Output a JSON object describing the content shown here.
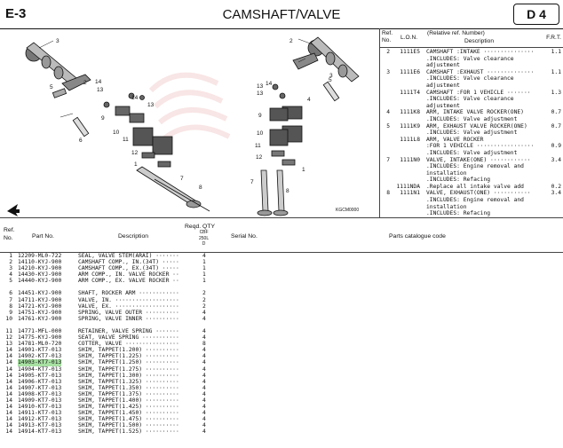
{
  "header": {
    "section": "E-3",
    "title": "CAMSHAFT/VALVE",
    "badge": "D 4"
  },
  "drawing": {
    "code": "KGCM0000",
    "callouts": [
      "3",
      "2",
      "14",
      "5",
      "13",
      "14",
      "13",
      "6",
      "9",
      "10",
      "11",
      "12",
      "1",
      "7",
      "8",
      "3",
      "14",
      "13",
      "13",
      "2",
      "4",
      "9",
      "10",
      "11",
      "12",
      "1",
      "7",
      "8",
      "5"
    ]
  },
  "ref_table": {
    "headers": {
      "ref_no": "Ref.\nNo.",
      "lon": "L.O.N.",
      "relnum": "(Relative ref. Number)",
      "desc": "Description",
      "frt": "F.R.T."
    },
    "lines": [
      {
        "ref": "2",
        "lon": "1111E5",
        "desc": "CAMSHAFT :INTAKE ···············",
        "frt": "1.1"
      },
      {
        "ref": "",
        "lon": "",
        "desc": ".INCLUDES: Valve clearance",
        "frt": ""
      },
      {
        "ref": "",
        "lon": "",
        "desc": "adjustment",
        "frt": ""
      },
      {
        "ref": "3",
        "lon": "1111E6",
        "desc": "CAMSHAFT :EXHAUST ··············",
        "frt": "1.1"
      },
      {
        "ref": "",
        "lon": "",
        "desc": ".INCLUDES: Valve clearance",
        "frt": ""
      },
      {
        "ref": "",
        "lon": "",
        "desc": "adjustment",
        "frt": ""
      },
      {
        "ref": "",
        "lon": "1111T4",
        "desc": "CAMSHAFT :FOR 1 VEHICLE ·······",
        "frt": "1.3"
      },
      {
        "ref": "",
        "lon": "",
        "desc": ".INCLUDES: Valve clearance",
        "frt": ""
      },
      {
        "ref": "",
        "lon": "",
        "desc": "adjustment",
        "frt": ""
      },
      {
        "ref": "4",
        "lon": "1111K8",
        "desc": "ARM, INTAKE VALVE ROCKER(ONE)",
        "frt": "0.7"
      },
      {
        "ref": "",
        "lon": "",
        "desc": ".INCLUDES: Valve adjustment",
        "frt": ""
      },
      {
        "ref": "5",
        "lon": "1111K9",
        "desc": "ARM, EXHAUST VALVE ROCKER(ONE)",
        "frt": "0.7"
      },
      {
        "ref": "",
        "lon": "",
        "desc": ".INCLUDES: Valve adjustment",
        "frt": ""
      },
      {
        "ref": "",
        "lon": "1111L8",
        "desc": "ARM, VALVE ROCKER",
        "frt": ""
      },
      {
        "ref": "",
        "lon": "",
        "desc": ":FOR 1 VEHICLE ·················",
        "frt": "0.9"
      },
      {
        "ref": "",
        "lon": "",
        "desc": ".INCLUDES: Valve adjustment",
        "frt": ""
      },
      {
        "ref": "7",
        "lon": "1111N0",
        "desc": "VALVE, INTAKE(ONE) ············",
        "frt": "3.4"
      },
      {
        "ref": "",
        "lon": "",
        "desc": ".INCLUDES: Engine removal and",
        "frt": ""
      },
      {
        "ref": "",
        "lon": "",
        "desc": "installation",
        "frt": ""
      },
      {
        "ref": "",
        "lon": "",
        "desc": ".INCLUDES: Refacing",
        "frt": ""
      },
      {
        "ref": "",
        "lon": "1111NDA",
        "desc": ".Replace all intake valve add",
        "frt": "0.2"
      },
      {
        "ref": "8",
        "lon": "1111N1",
        "desc": "VALVE, EXHAUST(ONE) ···········",
        "frt": "3.4"
      },
      {
        "ref": "",
        "lon": "",
        "desc": ".INCLUDES: Engine removal and",
        "frt": ""
      },
      {
        "ref": "",
        "lon": "",
        "desc": "installation",
        "frt": ""
      },
      {
        "ref": "",
        "lon": "",
        "desc": ".INCLUDES: Refacing",
        "frt": ""
      }
    ]
  },
  "parts_table": {
    "headers": {
      "ref_no": "Ref.\nNo.",
      "part_no": "Part No.",
      "description": "Description",
      "reqd_qty": "Reqd. QTY",
      "qty_sub": "CBF\n250L\nD",
      "serial_no": "Serial No.",
      "catalogue_code": "Parts catalogue code"
    },
    "groups": [
      [
        {
          "ref": "1",
          "part": "12209-ML0-722",
          "desc": "SEAL, VALVE STEM(ARAI) ·······",
          "qty": "4"
        },
        {
          "ref": "2",
          "part": "14110-KYJ-900",
          "desc": "CAMSHAFT COMP., IN.(34T) ·····",
          "qty": "1"
        },
        {
          "ref": "3",
          "part": "14210-KYJ-900",
          "desc": "CAMSHAFT COMP., EX.(34T) ·····",
          "qty": "1"
        },
        {
          "ref": "4",
          "part": "14430-KYJ-900",
          "desc": "ARM COMP., IN. VALVE ROCKER ··",
          "qty": "1"
        },
        {
          "ref": "5",
          "part": "14440-KYJ-900",
          "desc": "ARM COMP., EX. VALVE ROCKER ··",
          "qty": "1"
        }
      ],
      [
        {
          "ref": "6",
          "part": "14451-KYJ-900",
          "desc": "SHAFT, ROCKER ARM ············",
          "qty": "2"
        },
        {
          "ref": "7",
          "part": "14711-KYJ-900",
          "desc": "VALVE, IN. ···················",
          "qty": "2"
        },
        {
          "ref": "8",
          "part": "14721-KYJ-900",
          "desc": "VALVE, EX. ···················",
          "qty": "2"
        },
        {
          "ref": "9",
          "part": "14751-KYJ-900",
          "desc": "SPRING, VALVE OUTER ··········",
          "qty": "4"
        },
        {
          "ref": "10",
          "part": "14761-KYJ-900",
          "desc": "SPRING, VALVE INNER ··········",
          "qty": "4"
        }
      ],
      [
        {
          "ref": "11",
          "part": "14771-MFL-000",
          "desc": "RETAINER, VALVE SPRING ·······",
          "qty": "4"
        },
        {
          "ref": "12",
          "part": "14775-KYJ-900",
          "desc": "SEAT, VALVE SPRING ···········",
          "qty": "4"
        },
        {
          "ref": "13",
          "part": "14781-ML0-720",
          "desc": "COTTER, VALVE ················",
          "qty": "8"
        },
        {
          "ref": "14",
          "part": "14901-KT7-013",
          "desc": "SHIM, TAPPET(1.200) ··········",
          "qty": "4"
        },
        {
          "ref": "14",
          "part": "14902-KT7-013",
          "desc": "SHIM, TAPPET(1.225) ··········",
          "qty": "4"
        },
        {
          "ref": "14",
          "part": "14903-KT7-013",
          "desc": "SHIM, TAPPET(1.250) ··········",
          "qty": "4",
          "highlight": true
        },
        {
          "ref": "14",
          "part": "14904-KT7-013",
          "desc": "SHIM, TAPPET(1.275) ··········",
          "qty": "4"
        },
        {
          "ref": "14",
          "part": "14905-KT7-013",
          "desc": "SHIM, TAPPET(1.300) ··········",
          "qty": "4"
        },
        {
          "ref": "14",
          "part": "14906-KT7-013",
          "desc": "SHIM, TAPPET(1.325) ··········",
          "qty": "4"
        },
        {
          "ref": "14",
          "part": "14907-KT7-013",
          "desc": "SHIM, TAPPET(1.350) ··········",
          "qty": "4"
        },
        {
          "ref": "14",
          "part": "14908-KT7-013",
          "desc": "SHIM, TAPPET(1.375) ··········",
          "qty": "4"
        },
        {
          "ref": "14",
          "part": "14909-KT7-013",
          "desc": "SHIM, TAPPET(1.400) ··········",
          "qty": "4"
        },
        {
          "ref": "14",
          "part": "14910-KT7-013",
          "desc": "SHIM, TAPPET(1.425) ··········",
          "qty": "4"
        },
        {
          "ref": "14",
          "part": "14911-KT7-013",
          "desc": "SHIM, TAPPET(1.450) ··········",
          "qty": "4"
        },
        {
          "ref": "14",
          "part": "14912-KT7-013",
          "desc": "SHIM, TAPPET(1.475) ··········",
          "qty": "4"
        },
        {
          "ref": "14",
          "part": "14913-KT7-013",
          "desc": "SHIM, TAPPET(1.500) ··········",
          "qty": "4"
        },
        {
          "ref": "14",
          "part": "14914-KT7-013",
          "desc": "SHIM, TAPPET(1.525) ··········",
          "qty": "4"
        }
      ]
    ]
  }
}
